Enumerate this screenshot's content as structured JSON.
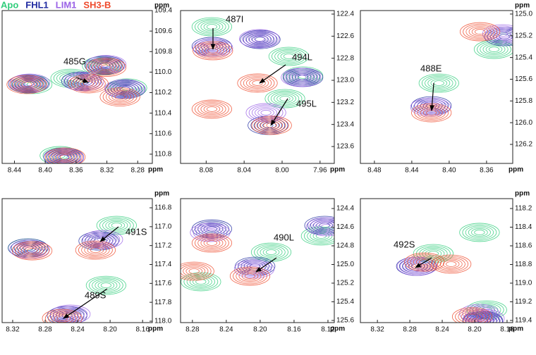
{
  "legend": [
    {
      "name": "Apo",
      "color": "#2fcc7a"
    },
    {
      "name": "FHL1",
      "color": "#1f2aa0"
    },
    {
      "name": "LIM1",
      "color": "#9a62e6"
    },
    {
      "name": "SH3-B",
      "color": "#ee4a2c"
    }
  ],
  "chart_data": [
    {
      "type": "contour",
      "xlim": [
        8.456,
        8.261
      ],
      "ylim": [
        109.4,
        110.89
      ],
      "xticks": [
        8.44,
        {
          "value": 8.4,
          "label": "8.40"
        },
        8.36,
        8.32,
        8.28
      ],
      "yticks": [
        109.4,
        109.6,
        109.8,
        {
          "value": 110,
          "label": "110.0"
        },
        110.2,
        110.4,
        110.6,
        110.8
      ],
      "x_label": "ppm",
      "y_label": "ppm",
      "annotations": [
        "485G"
      ],
      "series": [
        {
          "x": [
            8.417,
            8.367,
            8.326,
            8.294,
            8.381
          ],
          "values": [
            110.121,
            110.06,
            109.939,
            110.155,
            110.814
          ]
        },
        {
          "x": [
            8.422,
            8.353,
            8.323,
            8.296,
            8.376
          ],
          "values": [
            110.114,
            110.087,
            109.932,
            110.168,
            110.828
          ]
        },
        {
          "x": [
            8.42,
            8.35,
            8.321,
            8.297,
            8.376
          ],
          "values": [
            110.107,
            110.094,
            109.926,
            110.161,
            110.835
          ]
        },
        {
          "x": [
            8.424,
            8.344,
            8.321,
            8.303,
            8.374
          ],
          "values": [
            110.121,
            110.114,
            109.953,
            110.242,
            110.828
          ]
        }
      ]
    },
    {
      "type": "contour",
      "xlim": [
        8.107,
        7.945
      ],
      "ylim": [
        122.368,
        123.753
      ],
      "xticks": [
        8.08,
        8.04,
        {
          "value": 8,
          "label": "8.00"
        },
        7.96
      ],
      "yticks": [
        122.4,
        122.6,
        122.8,
        {
          "value": 123,
          "label": "123.0"
        },
        123.2,
        123.4,
        123.6
      ],
      "x_label": "ppm",
      "annotations": [
        "487I",
        "494L",
        "495L"
      ],
      "series": [
        {
          "x": [
            8.074,
            7.993,
            7.997,
            7.978
          ],
          "values": [
            122.515,
            122.783,
            123.166,
            122.961
          ]
        },
        {
          "x": [
            8.074,
            8.023,
            8.015,
            7.978
          ],
          "values": [
            122.693,
            122.63,
            123.408,
            122.974
          ]
        },
        {
          "x": [
            8.073,
            8.024,
            8.017,
            7.98
          ],
          "values": [
            122.706,
            122.623,
            123.293,
            122.974
          ]
        },
        {
          "x": [
            8.073,
            8.026,
            8.011,
            8.074
          ],
          "values": [
            122.732,
            123.025,
            123.408,
            123.261
          ]
        }
      ]
    },
    {
      "type": "contour",
      "xlim": [
        8.495,
        8.332
      ],
      "ylim": [
        124.968,
        126.375
      ],
      "xticks": [
        8.48,
        8.44,
        {
          "value": 8.4,
          "label": "8.40"
        },
        8.36
      ],
      "yticks": [
        {
          "value": 125,
          "label": "125.0"
        },
        125.2,
        125.4,
        125.6,
        125.8,
        {
          "value": 126,
          "label": "126.0"
        },
        126.2
      ],
      "x_label": "ppm",
      "y_label": "ppm",
      "annotations": [
        "488E"
      ],
      "series": [
        {
          "x": [
            8.411,
            8.352
          ],
          "values": [
            125.636,
            125.325
          ]
        },
        {
          "x": [
            8.419,
            8.341
          ],
          "values": [
            125.844,
            125.208
          ]
        },
        {
          "x": [
            8.42,
            8.343
          ],
          "values": [
            125.857,
            125.182
          ]
        },
        {
          "x": [
            8.419,
            8.367
          ],
          "values": [
            125.909,
            125.163
          ]
        }
      ]
    },
    {
      "type": "contour",
      "xlim": [
        8.333,
        8.148
      ],
      "ylim": [
        116.703,
        118.015
      ],
      "xticks": [
        8.32,
        8.28,
        8.24,
        {
          "value": 8.2,
          "label": "8.20"
        },
        8.16
      ],
      "yticks": [
        116.8,
        {
          "value": 117,
          "label": "117.0"
        },
        117.2,
        117.4,
        117.6,
        117.8,
        {
          "value": 118,
          "label": "118.0"
        }
      ],
      "x_label": "ppm",
      "y_label": "ppm",
      "annotations": [
        "491S",
        "489S"
      ],
      "series": [
        {
          "x": [
            8.192,
            8.205,
            8.301
          ],
          "values": [
            116.986,
            117.621,
            117.225
          ]
        },
        {
          "x": [
            8.214,
            8.253,
            8.301
          ],
          "values": [
            117.151,
            117.941,
            117.225
          ]
        },
        {
          "x": [
            8.209,
            8.249,
            8.299
          ],
          "values": [
            117.136,
            117.926,
            117.24
          ]
        },
        {
          "x": [
            8.218,
            8.259,
            8.296
          ],
          "values": [
            117.248,
            117.971,
            117.255
          ]
        }
      ]
    },
    {
      "type": "contour",
      "xlim": [
        8.294,
        8.1125
      ],
      "ylim": [
        124.294,
        125.623
      ],
      "xticks": [
        8.28,
        8.24,
        {
          "value": 8.2,
          "label": "8.20"
        },
        8.16,
        8.12
      ],
      "yticks": [
        124.4,
        124.6,
        124.8,
        {
          "value": 125,
          "label": "125.0"
        },
        125.2,
        125.4,
        125.6
      ],
      "x_label": "ppm",
      "annotations": [
        "490L"
      ],
      "series": [
        {
          "x": [
            8.187,
            8.27,
            8.128
          ],
          "values": [
            124.868,
            125.185,
            124.694
          ]
        },
        {
          "x": [
            8.206,
            8.257,
            8.124
          ],
          "values": [
            125.019,
            124.619,
            124.581
          ]
        },
        {
          "x": [
            8.207,
            8.259,
            8.122
          ],
          "values": [
            125.049,
            124.656,
            124.596
          ]
        },
        {
          "x": [
            8.212,
            8.257,
            8.278
          ],
          "values": [
            125.125,
            124.77,
            125.072
          ]
        }
      ]
    },
    {
      "type": "contour",
      "xlim": [
        8.341,
        8.153
      ],
      "ylim": [
        118.094,
        119.423
      ],
      "xticks": [
        8.32,
        8.28,
        8.24,
        {
          "value": 8.2,
          "label": "8.20"
        },
        8.16
      ],
      "yticks": [
        118.2,
        118.4,
        118.6,
        118.8,
        {
          "value": 119,
          "label": "119.0"
        },
        119.2,
        119.4
      ],
      "x_label": "ppm",
      "y_label": "ppm",
      "annotations": [
        "492S"
      ],
      "series": [
        {
          "x": [
            8.251,
            8.194,
            8.185
          ],
          "values": [
            118.683,
            118.456,
            119.287
          ]
        },
        {
          "x": [
            8.272,
            8.19,
            8.19
          ],
          "values": [
            118.819,
            119.4,
            119.41
          ]
        },
        {
          "x": [
            8.271,
            8.194,
            8.188
          ],
          "values": [
            118.819,
            119.325,
            119.38
          ]
        },
        {
          "x": [
            8.262,
            8.229,
            8.203
          ],
          "values": [
            118.774,
            118.796,
            119.36
          ]
        }
      ]
    }
  ]
}
